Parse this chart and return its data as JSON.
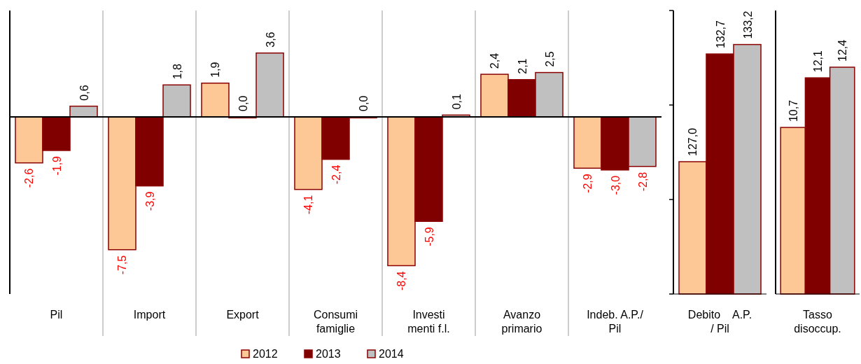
{
  "chart_data": [
    {
      "type": "bar",
      "categories": [
        "Pil",
        "Import",
        "Export",
        "Consumi\nfamiglie",
        "Investi\nmenti f.l.",
        "Avanzo\nprimario",
        "Indeb. A.P./\nPil"
      ],
      "ylim": [
        -10,
        6
      ],
      "tick_labels": "x",
      "grid": "x",
      "legend": "bottom",
      "series": [
        {
          "name": "2012",
          "color": "#fdc896",
          "values": [
            -2.6,
            -7.5,
            1.9,
            -4.1,
            -8.4,
            2.4,
            -2.9
          ],
          "value_labels": [
            "-2,6",
            "-7,5",
            "1,9",
            "-4,1",
            "-8,4",
            "2,4",
            "-2,9"
          ]
        },
        {
          "name": "2013",
          "color": "#800000",
          "values": [
            -1.9,
            -3.9,
            0.0,
            -2.4,
            -5.9,
            2.1,
            -3.0
          ],
          "value_labels": [
            "-1,9",
            "-3,9",
            "0,0",
            "-2,4",
            "-5,9",
            "2,1",
            "-3,0"
          ]
        },
        {
          "name": "2014",
          "color": "#c0c0c0",
          "values": [
            0.6,
            1.8,
            3.6,
            0.0,
            0.1,
            2.5,
            -2.8
          ],
          "value_labels": [
            "0,6",
            "1,8",
            "3,6",
            "0,0",
            "0,1",
            "2,5",
            "-2,8"
          ]
        }
      ]
    },
    {
      "type": "bar",
      "categories": [
        "Debito    A.P.\n/ Pil"
      ],
      "ylim": [
        120,
        135
      ],
      "yticks": [
        {
          "value": 120,
          "label": null
        },
        {
          "value": 125,
          "label": null
        },
        {
          "value": 130,
          "label": null
        },
        {
          "value": 135,
          "label": null
        }
      ],
      "tick_labels": "x",
      "series": [
        {
          "color": "#fdc896",
          "values": [
            127.0
          ],
          "value_labels": [
            "127,0"
          ]
        },
        {
          "color": "#800000",
          "values": [
            132.7
          ],
          "value_labels": [
            "132,7"
          ]
        },
        {
          "color": "#c0c0c0",
          "values": [
            133.2
          ],
          "value_labels": [
            "133,2"
          ]
        }
      ]
    },
    {
      "type": "bar",
      "categories": [
        "Tasso\ndisoccup."
      ],
      "ylim": [
        6,
        14
      ],
      "tick_labels": "x",
      "series": [
        {
          "color": "#fdc896",
          "values": [
            10.7
          ],
          "value_labels": [
            "10,7"
          ]
        },
        {
          "color": "#800000",
          "values": [
            12.1
          ],
          "value_labels": [
            "12,1"
          ]
        },
        {
          "color": "#c0c0c0",
          "values": [
            12.4
          ],
          "value_labels": [
            "12,4"
          ]
        }
      ]
    }
  ]
}
